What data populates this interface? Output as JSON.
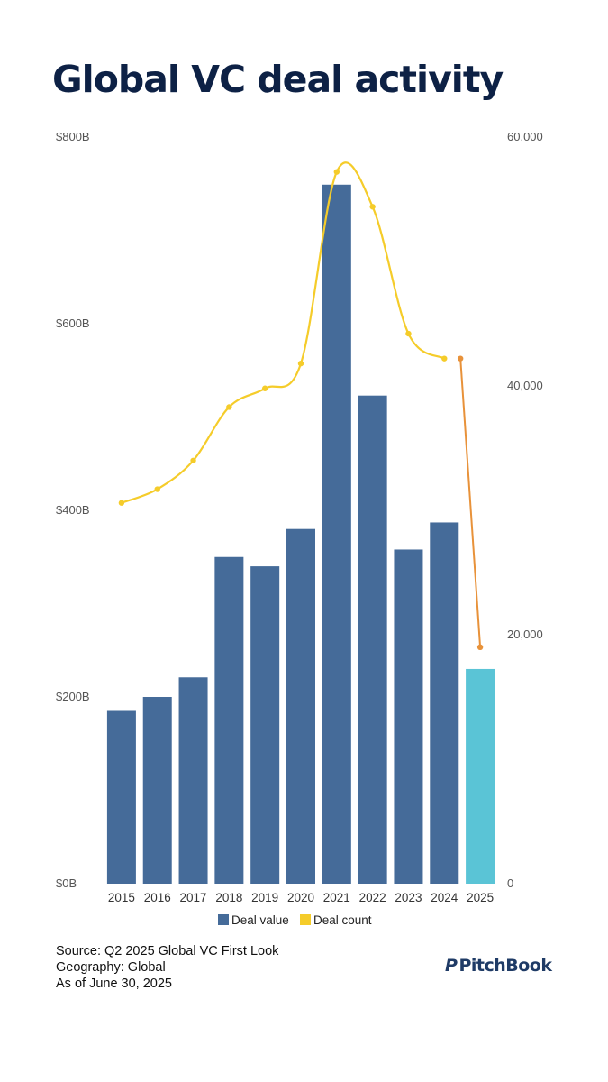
{
  "title": "Global VC deal activity",
  "chart_data": {
    "type": "bar",
    "categories": [
      "2015",
      "2016",
      "2017",
      "2018",
      "2019",
      "2020",
      "2021",
      "2022",
      "2023",
      "2024",
      "2025"
    ],
    "series": [
      {
        "name": "Deal value",
        "axis": "left",
        "color": "#456b99",
        "highlight_color": "#5ac4d6",
        "values": [
          186,
          200,
          221,
          350,
          340,
          380,
          749,
          523,
          358,
          387,
          230
        ]
      },
      {
        "name": "Deal count",
        "axis": "right",
        "type": "line",
        "color": "#f5cc2a",
        "partial_color": "#e8923a",
        "values": [
          30600,
          31700,
          34000,
          38300,
          39800,
          41800,
          57200,
          54400,
          44200,
          42200,
          19000
        ]
      }
    ],
    "left_axis": {
      "ylim": [
        0,
        800
      ],
      "ticks": [
        0,
        200,
        400,
        600,
        800
      ],
      "tick_labels": [
        "$0B",
        "$200B",
        "$400B",
        "$600B",
        "$800B"
      ]
    },
    "right_axis": {
      "ylim": [
        0,
        60000
      ],
      "ticks": [
        0,
        20000,
        40000,
        60000
      ],
      "tick_labels": [
        "0",
        "20,000",
        "40,000",
        "60,000"
      ]
    },
    "legend": [
      "Deal value",
      "Deal count"
    ],
    "legend_position": "bottom",
    "grid": false
  },
  "footer": {
    "source": "Source: Q2 2025 Global VC First Look",
    "geography": "Geography: Global",
    "as_of": "As of June 30, 2025"
  },
  "brand": {
    "mark": "P",
    "name": "PitchBook"
  }
}
